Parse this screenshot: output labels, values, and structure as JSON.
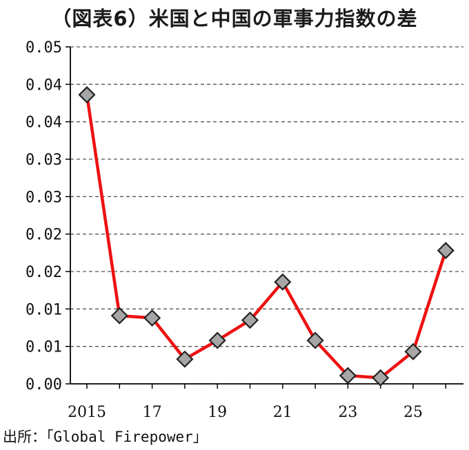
{
  "title": "（図表6）米国と中国の軍事力指数の差",
  "source": "出所：「Global Firepower」",
  "colors": {
    "line": "#ee1111",
    "marker_fill": "#a6a6a6",
    "marker_stroke": "#222222",
    "grid": "#555555"
  },
  "chart_data": {
    "type": "line",
    "title": "（図表6）米国と中国の軍事力指数の差",
    "xlabel": "",
    "ylabel": "",
    "ylim": [
      0,
      0.045
    ],
    "grid": true,
    "grid_style": "dashed",
    "y_tick_labels": [
      "0.00",
      "0.01",
      "0.01",
      "0.02",
      "0.02",
      "0.03",
      "0.03",
      "0.04",
      "0.04",
      "0.05"
    ],
    "x_tick_labels": [
      "2015",
      "17",
      "19",
      "21",
      "23",
      "25"
    ],
    "x_tick_years": [
      2015,
      2017,
      2019,
      2021,
      2023,
      2025
    ],
    "x": [
      2015,
      2016,
      2017,
      2018,
      2019,
      2020,
      2021,
      2022,
      2023,
      2024,
      2025,
      2026
    ],
    "series": [
      {
        "values": [
          0.0386,
          0.0091,
          0.0088,
          0.0033,
          0.0058,
          0.0085,
          0.0136,
          0.0058,
          0.0011,
          0.0008,
          0.0043,
          0.0178
        ]
      }
    ]
  }
}
